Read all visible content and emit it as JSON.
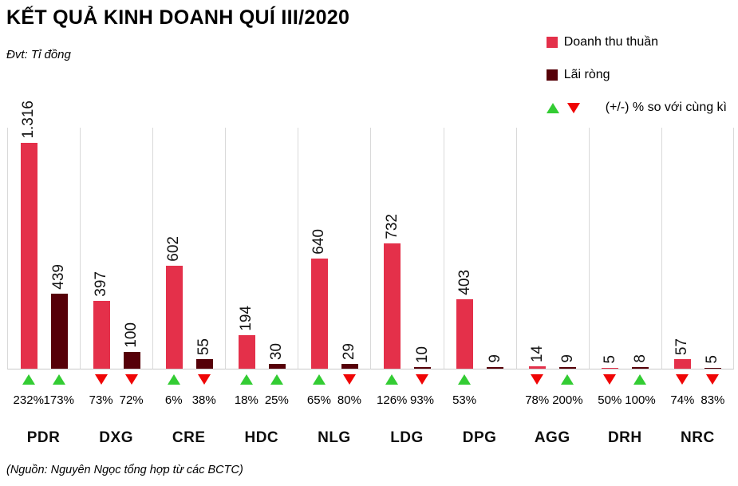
{
  "title": "KẾT QUẢ KINH DOANH QUÍ III/2020",
  "unit_note": "Đvt: Tỉ đồng",
  "source_note": "(Nguồn: Nguyên Ngọc tổng hợp từ các BCTC)",
  "legend": {
    "revenue_label": "Doanh thu thuần",
    "profit_label": "Lãi ròng",
    "change_label": "(+/-) % so với cùng kì"
  },
  "colors": {
    "revenue_bar": "#E4304A",
    "profit_bar": "#560008",
    "up_triangle": "#33CC33",
    "down_triangle": "#EF0505",
    "gridline": "#D9D9D9"
  },
  "chart_data": {
    "type": "bar",
    "title": "KẾT QUẢ KINH DOANH QUÍ III/2020",
    "unit": "Tỉ đồng",
    "categories": [
      "PDR",
      "DXG",
      "CRE",
      "HDC",
      "NLG",
      "LDG",
      "DPG",
      "AGG",
      "DRH",
      "NRC"
    ],
    "series": [
      {
        "name": "Doanh thu thuần",
        "values": [
          1316,
          397,
          602,
          194,
          640,
          732,
          403,
          14,
          5,
          57
        ],
        "value_labels": [
          "1.316",
          "397",
          "602",
          "194",
          "640",
          "732",
          "403",
          "14",
          "5",
          "57"
        ],
        "change_pct": [
          "232%",
          "73%",
          "6%",
          "18%",
          "65%",
          "126%",
          "53%",
          "78%",
          "50%",
          "74%"
        ],
        "change_dir": [
          "up",
          "down",
          "up",
          "up",
          "up",
          "up",
          "up",
          "down",
          "down",
          "down"
        ]
      },
      {
        "name": "Lãi ròng",
        "values": [
          439,
          100,
          55,
          30,
          29,
          10,
          9,
          9,
          8,
          5
        ],
        "value_labels": [
          "439",
          "100",
          "55",
          "30",
          "29",
          "10",
          "9",
          "9",
          "8",
          "5"
        ],
        "change_pct": [
          "173%",
          "72%",
          "38%",
          "25%",
          "80%",
          "93%",
          null,
          "200%",
          "100%",
          "83%"
        ],
        "change_dir": [
          "up",
          "down",
          "down",
          "up",
          "down",
          "down",
          null,
          "up",
          "up",
          "down"
        ]
      }
    ],
    "ylim": [
      0,
      1410
    ],
    "grid": "vertical-only",
    "legend_position": "top-right",
    "value_label_rotation": -90,
    "change_note": "(+/-) % so với cùng kì"
  }
}
